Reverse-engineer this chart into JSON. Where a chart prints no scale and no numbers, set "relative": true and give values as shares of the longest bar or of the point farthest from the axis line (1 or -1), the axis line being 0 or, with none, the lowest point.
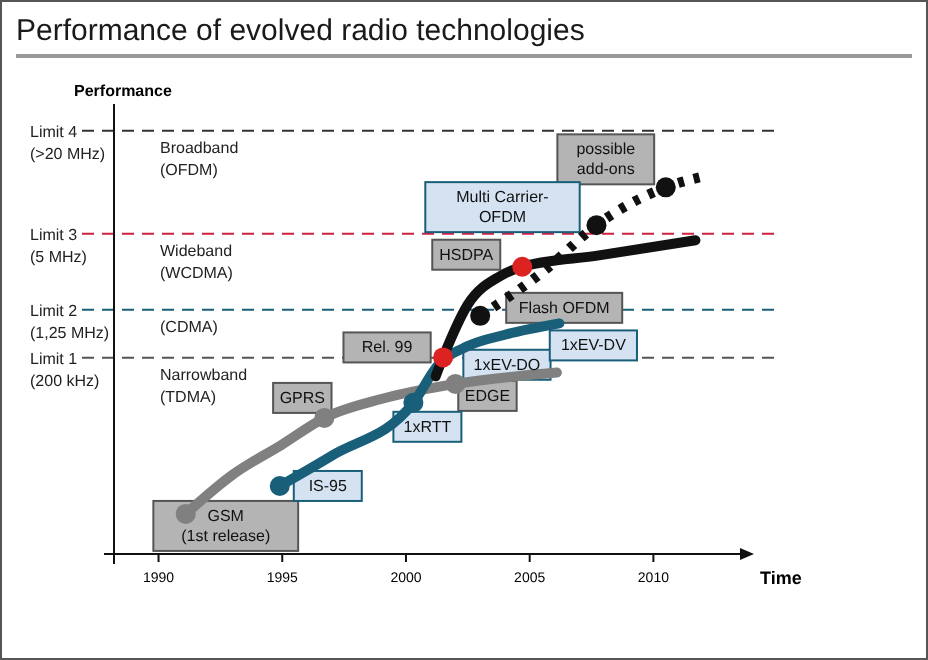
{
  "chart_data": {
    "type": "line",
    "title": "Performance of evolved radio technologies",
    "ylabel": "Performance",
    "xlabel": "Time",
    "relative": true,
    "xlim": [
      1988.2,
      2013.5
    ],
    "xticks": [
      1990,
      1995,
      2000,
      2005,
      2010
    ],
    "series": [
      {
        "color": "#808080",
        "x": [
          1991.1,
          1993,
          1995,
          1996.7,
          1999,
          2002,
          2006.1
        ],
        "values": [
          0.106,
          0.21,
          0.29,
          0.36,
          0.41,
          0.45,
          0.48
        ]
      },
      {
        "color": "#1a5f7a",
        "x": [
          1994.9,
          1997,
          2000.3,
          2001.3,
          2002.5,
          2004,
          2006.2
        ],
        "values": [
          0.18,
          0.26,
          0.4,
          0.5,
          0.55,
          0.58,
          0.61
        ]
      },
      {
        "color": "#111111",
        "x": [
          2001.2,
          2001.5,
          2002.5,
          2003.8,
          2004.7,
          2007.8,
          2011.7
        ],
        "values": [
          0.47,
          0.52,
          0.66,
          0.735,
          0.76,
          0.79,
          0.83
        ]
      },
      {
        "color": "#111111",
        "line_style": "dotted",
        "x": [
          2003,
          2005.6,
          2007.7,
          2010.5,
          2012.1
        ],
        "values": [
          0.63,
          0.75,
          0.87,
          0.97,
          1
        ]
      },
      {
        "type": "scatter",
        "marker": "circle",
        "color": "#808080",
        "x": [
          1991.1,
          1996.7,
          2002
        ],
        "values": [
          0.106,
          0.36,
          0.45
        ]
      },
      {
        "type": "scatter",
        "marker": "circle",
        "color": "#1a5f7a",
        "x": [
          1994.9,
          2000.3
        ],
        "values": [
          0.18,
          0.4
        ]
      },
      {
        "type": "scatter",
        "marker": "circle",
        "color": "#111111",
        "x": [
          2003,
          2007.7,
          2010.5
        ],
        "values": [
          0.63,
          0.87,
          0.97
        ]
      },
      {
        "type": "scatter",
        "marker": "circle",
        "color": "#dd2222",
        "x": [
          2001.5,
          2004.7
        ],
        "values": [
          0.52,
          0.76
        ]
      }
    ],
    "ref_lines": [
      {
        "axis": "y",
        "value": 1.12,
        "label": "Limit 4\n(>20 MHz)",
        "color": "#333333",
        "line_style": "dashed"
      },
      {
        "axis": "y",
        "value": 0.847,
        "label": "Limit 3\n(5 MHz)",
        "color": "#cc2244",
        "line_style": "dashed"
      },
      {
        "axis": "y",
        "value": 0.646,
        "label": "Limit 2\n(1,25 MHz)",
        "color": "#1a5f7a",
        "line_style": "dashed"
      },
      {
        "axis": "y",
        "value": 0.519,
        "label": "Limit 1\n(200 kHz)",
        "color": "#555555",
        "line_style": "dashed"
      }
    ],
    "annotations": [
      {
        "text": "GSM\n(1st release)",
        "x": 1991.1,
        "y": 0.106
      },
      {
        "text": "GPRS",
        "x": 1996.7,
        "y": 0.36
      },
      {
        "text": "EDGE",
        "x": 2002,
        "y": 0.45
      },
      {
        "text": "Rel. 99",
        "x": 2001.5,
        "y": 0.52
      },
      {
        "text": "HSDPA",
        "x": 2004.7,
        "y": 0.76
      },
      {
        "text": "Flash OFDM",
        "x": 2003,
        "y": 0.63
      },
      {
        "text": "possible\nadd-ons",
        "x": 2010.5,
        "y": 0.97
      },
      {
        "text": "IS-95",
        "x": 1994.9,
        "y": 0.18
      },
      {
        "text": "1xRTT",
        "x": 2000.3,
        "y": 0.4
      },
      {
        "text": "1xEV-DO",
        "x": 2004,
        "y": 0.58
      },
      {
        "text": "1xEV-DV",
        "x": 2006.2,
        "y": 0.61
      },
      {
        "text": "Multi Carrier-\nOFDM",
        "x": 2007.7,
        "y": 0.87
      },
      "Broadband\n(OFDM)",
      "Wideband\n(WCDMA)",
      "(CDMA)",
      "Narrowband\n(TDMA)"
    ]
  }
}
